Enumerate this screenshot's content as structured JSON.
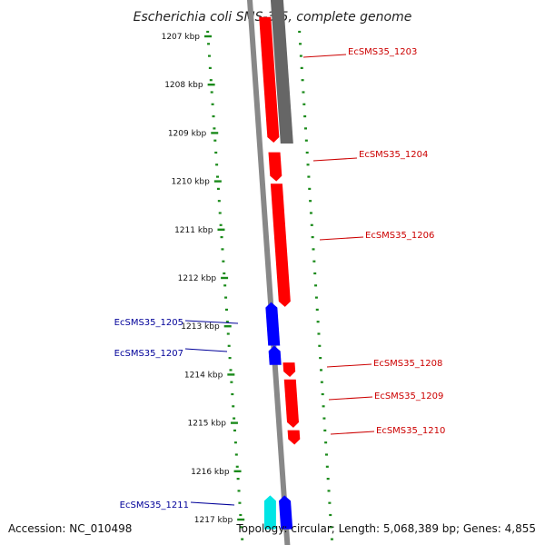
{
  "title": "Escherichia coli SMS-3-5, complete genome",
  "footer": {
    "accession": "Accession: NC_010498",
    "topology": "Topology: circular; Length: 5,068,389 bp; Genes: 4,855"
  },
  "colors": {
    "forward_gene": "#ff0000",
    "reverse_gene": "#0000ff",
    "cyan_gene": "#00e5e5",
    "gray_feature": "#666666",
    "backbone": "#888888",
    "ruler": "#1a8a1a",
    "forward_label": "#cc0000",
    "reverse_label": "#000099"
  },
  "ruler": {
    "ticks": [
      {
        "kbp": 1207,
        "label": "1207 kbp"
      },
      {
        "kbp": 1208,
        "label": "1208 kbp"
      },
      {
        "kbp": 1209,
        "label": "1209 kbp"
      },
      {
        "kbp": 1210,
        "label": "1210 kbp"
      },
      {
        "kbp": 1211,
        "label": "1211 kbp"
      },
      {
        "kbp": 1212,
        "label": "1212 kbp"
      },
      {
        "kbp": 1213,
        "label": "1213 kbp"
      },
      {
        "kbp": 1214,
        "label": "1214 kbp"
      },
      {
        "kbp": 1215,
        "label": "1215 kbp"
      },
      {
        "kbp": 1216,
        "label": "1216 kbp"
      },
      {
        "kbp": 1217,
        "label": "1217 kbp"
      }
    ]
  },
  "genes": [
    {
      "id": "EcSMS35_1203",
      "label": "EcSMS35_1203",
      "strand": "+",
      "start_kbp": 1206.6,
      "end_kbp": 1209.2
    },
    {
      "id": "EcSMS35_1204",
      "label": "EcSMS35_1204",
      "strand": "+",
      "start_kbp": 1209.4,
      "end_kbp": 1210.0
    },
    {
      "id": "EcSMS35_1206",
      "label": "EcSMS35_1206",
      "strand": "+",
      "start_kbp": 1210.05,
      "end_kbp": 1212.6
    },
    {
      "id": "EcSMS35_1205",
      "label": "EcSMS35_1205",
      "strand": "-",
      "start_kbp": 1212.5,
      "end_kbp": 1213.4
    },
    {
      "id": "EcSMS35_1207",
      "label": "EcSMS35_1207",
      "strand": "-",
      "start_kbp": 1213.4,
      "end_kbp": 1213.8
    },
    {
      "id": "EcSMS35_1208",
      "label": "EcSMS35_1208",
      "strand": "+",
      "start_kbp": 1213.75,
      "end_kbp": 1214.05
    },
    {
      "id": "EcSMS35_1209",
      "label": "EcSMS35_1209",
      "strand": "+",
      "start_kbp": 1214.1,
      "end_kbp": 1215.1
    },
    {
      "id": "EcSMS35_1210",
      "label": "EcSMS35_1210",
      "strand": "+",
      "start_kbp": 1215.15,
      "end_kbp": 1215.45
    },
    {
      "id": "EcSMS35_1211",
      "label": "EcSMS35_1211",
      "strand": "-",
      "start_kbp": 1216.5,
      "end_kbp": 1217.2
    }
  ]
}
